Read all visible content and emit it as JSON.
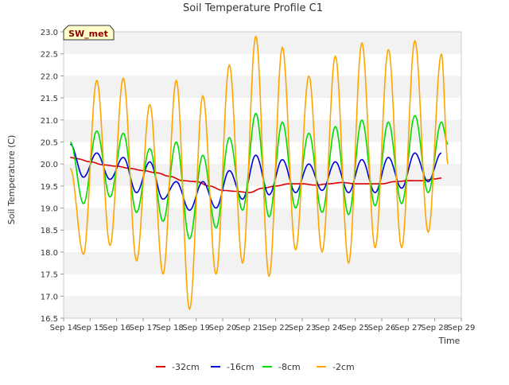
{
  "chart_data": {
    "type": "line",
    "title": "Soil Temperature Profile C1",
    "xlabel": "Time",
    "ylabel": "Soil Temperature (C)",
    "site_badge": "SW_met",
    "x_ticks": [
      "Sep 14",
      "Sep 15",
      "Sep 16",
      "Sep 17",
      "Sep 18",
      "Sep 19",
      "Sep 20",
      "Sep 21",
      "Sep 22",
      "Sep 23",
      "Sep 24",
      "Sep 25",
      "Sep 26",
      "Sep 27",
      "Sep 28",
      "Sep 29"
    ],
    "xlim": [
      "Sep 14",
      "Sep 29"
    ],
    "ylim": [
      16.5,
      23.0
    ],
    "y_ticks": [
      "16.5",
      "17.0",
      "17.5",
      "18.0",
      "18.5",
      "19.0",
      "19.5",
      "20.0",
      "20.5",
      "21.0",
      "21.5",
      "22.0",
      "22.5",
      "23.0"
    ],
    "grid": "horizontal bands",
    "legend_position": "bottom",
    "series": [
      {
        "name": "-32cm",
        "color": "#dd0000",
        "x": [
          "Sep 14 06:00",
          "Sep 14 12:00",
          "Sep 15 00:00",
          "Sep 15 12:00",
          "Sep 16 00:00",
          "Sep 16 12:00",
          "Sep 17 00:00",
          "Sep 17 12:00",
          "Sep 18 00:00",
          "Sep 18 12:00",
          "Sep 19 00:00",
          "Sep 19 12:00",
          "Sep 20 00:00",
          "Sep 20 12:00",
          "Sep 21 00:00",
          "Sep 21 12:00",
          "Sep 22 00:00",
          "Sep 22 12:00",
          "Sep 23 00:00",
          "Sep 23 12:00",
          "Sep 24 00:00",
          "Sep 24 12:00",
          "Sep 25 00:00",
          "Sep 25 12:00",
          "Sep 26 00:00",
          "Sep 26 12:00",
          "Sep 27 00:00",
          "Sep 27 12:00",
          "Sep 28 00:00",
          "Sep 28 06:00"
        ],
        "y": [
          20.15,
          20.12,
          20.05,
          19.98,
          19.95,
          19.9,
          19.85,
          19.8,
          19.72,
          19.62,
          19.6,
          19.5,
          19.4,
          19.38,
          19.35,
          19.45,
          19.5,
          19.55,
          19.55,
          19.52,
          19.55,
          19.58,
          19.55,
          19.55,
          19.55,
          19.6,
          19.62,
          19.62,
          19.66,
          19.68
        ]
      },
      {
        "name": "-16cm",
        "color": "#0000dd",
        "x": [
          "Sep 14 06:00",
          "Sep 14 18:00",
          "Sep 15 06:00",
          "Sep 15 18:00",
          "Sep 16 06:00",
          "Sep 16 18:00",
          "Sep 17 06:00",
          "Sep 17 18:00",
          "Sep 18 06:00",
          "Sep 18 18:00",
          "Sep 19 06:00",
          "Sep 19 18:00",
          "Sep 20 06:00",
          "Sep 20 18:00",
          "Sep 21 06:00",
          "Sep 21 18:00",
          "Sep 22 06:00",
          "Sep 22 18:00",
          "Sep 23 06:00",
          "Sep 23 18:00",
          "Sep 24 06:00",
          "Sep 24 18:00",
          "Sep 25 06:00",
          "Sep 25 18:00",
          "Sep 26 06:00",
          "Sep 26 18:00",
          "Sep 27 06:00",
          "Sep 27 18:00",
          "Sep 28 06:00"
        ],
        "y": [
          20.45,
          19.7,
          20.25,
          19.65,
          20.15,
          19.35,
          20.05,
          19.2,
          19.6,
          18.95,
          19.6,
          19.0,
          19.85,
          19.2,
          20.2,
          19.3,
          20.1,
          19.35,
          20.0,
          19.4,
          20.05,
          19.35,
          20.1,
          19.35,
          20.15,
          19.45,
          20.25,
          19.6,
          20.25
        ]
      },
      {
        "name": "-8cm",
        "color": "#00dd00",
        "x": [
          "Sep 14 06:00",
          "Sep 14 18:00",
          "Sep 15 06:00",
          "Sep 15 18:00",
          "Sep 16 06:00",
          "Sep 16 18:00",
          "Sep 17 06:00",
          "Sep 17 18:00",
          "Sep 18 06:00",
          "Sep 18 18:00",
          "Sep 19 06:00",
          "Sep 19 18:00",
          "Sep 20 06:00",
          "Sep 20 18:00",
          "Sep 21 06:00",
          "Sep 21 18:00",
          "Sep 22 06:00",
          "Sep 22 18:00",
          "Sep 23 06:00",
          "Sep 23 18:00",
          "Sep 24 06:00",
          "Sep 24 18:00",
          "Sep 25 06:00",
          "Sep 25 18:00",
          "Sep 26 06:00",
          "Sep 26 18:00",
          "Sep 27 06:00",
          "Sep 27 18:00",
          "Sep 28 06:00",
          "Sep 28 12:00"
        ],
        "y": [
          20.5,
          19.1,
          20.75,
          19.25,
          20.7,
          18.9,
          20.35,
          18.7,
          20.5,
          18.3,
          20.2,
          18.55,
          20.6,
          18.95,
          21.15,
          18.8,
          20.95,
          19.0,
          20.7,
          18.9,
          20.85,
          18.85,
          21.0,
          19.05,
          20.95,
          19.1,
          21.1,
          19.35,
          20.95,
          20.45
        ]
      },
      {
        "name": "-2cm",
        "color": "#ffa500",
        "x": [
          "Sep 14 06:00",
          "Sep 14 18:00",
          "Sep 15 06:00",
          "Sep 15 18:00",
          "Sep 16 06:00",
          "Sep 16 18:00",
          "Sep 17 06:00",
          "Sep 17 18:00",
          "Sep 18 06:00",
          "Sep 18 18:00",
          "Sep 19 06:00",
          "Sep 19 18:00",
          "Sep 20 06:00",
          "Sep 20 18:00",
          "Sep 21 06:00",
          "Sep 21 18:00",
          "Sep 22 06:00",
          "Sep 22 18:00",
          "Sep 23 06:00",
          "Sep 23 18:00",
          "Sep 24 06:00",
          "Sep 24 18:00",
          "Sep 25 06:00",
          "Sep 25 18:00",
          "Sep 26 06:00",
          "Sep 26 18:00",
          "Sep 27 06:00",
          "Sep 27 18:00",
          "Sep 28 06:00",
          "Sep 28 12:00"
        ],
        "y": [
          19.9,
          17.95,
          21.9,
          18.15,
          21.95,
          17.8,
          21.35,
          17.5,
          21.9,
          16.7,
          21.55,
          17.5,
          22.25,
          17.75,
          22.9,
          17.45,
          22.65,
          18.05,
          22.0,
          18.0,
          22.45,
          17.75,
          22.75,
          18.1,
          22.6,
          18.1,
          22.8,
          18.45,
          22.5,
          20.0
        ]
      }
    ]
  }
}
